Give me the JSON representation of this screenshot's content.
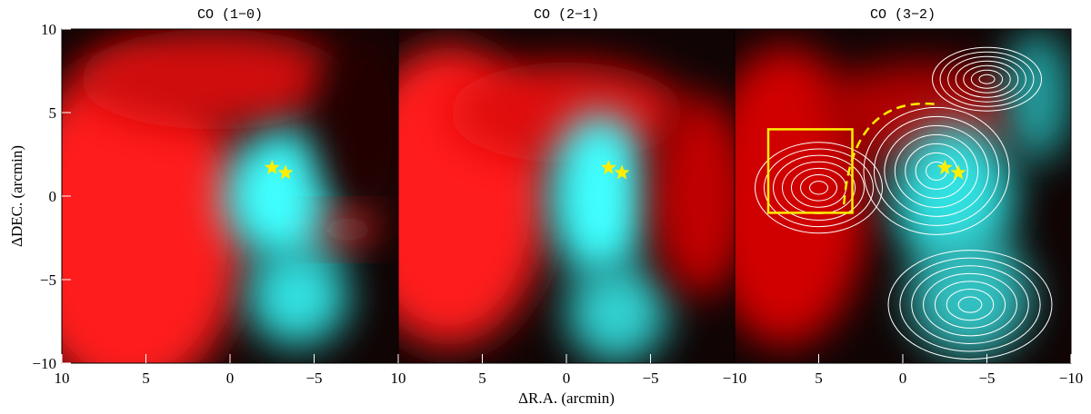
{
  "chart_data": [
    {
      "type": "image",
      "title": "CO (1−0)",
      "ylabel": "ΔDEC. (arcmin)",
      "xlim": [
        10,
        -10
      ],
      "ylim": [
        -10,
        10
      ],
      "xticks": [
        10,
        5,
        0,
        {
          "value": -5,
          "label": "−5"
        }
      ],
      "yticks": [
        10,
        5,
        0,
        {
          "value": -5,
          "label": "−5"
        },
        {
          "value": -10,
          "label": "−10"
        }
      ],
      "stars": {
        "x": [
          -2.5,
          -3.3
        ],
        "y": [
          1.7,
          1.4
        ],
        "color": "#ffee00"
      }
    },
    {
      "type": "image",
      "title": "CO (2−1)",
      "xlabel": "ΔR.A. (arcmin)",
      "xlim": [
        10,
        -10
      ],
      "ylim": [
        -10,
        10
      ],
      "xticks": [
        10,
        5,
        0,
        {
          "value": -5,
          "label": "−5"
        },
        {
          "value": -10,
          "label": "−10"
        }
      ],
      "stars": {
        "x": [
          -2.5,
          -3.3
        ],
        "y": [
          1.7,
          1.4
        ],
        "color": "#ffee00"
      }
    },
    {
      "type": "image",
      "title": "CO (3−2)",
      "xlim": [
        10,
        -10
      ],
      "ylim": [
        -10,
        10
      ],
      "xticks": [
        5,
        0,
        {
          "value": -5,
          "label": "−5"
        },
        {
          "value": -10,
          "label": "−10"
        }
      ],
      "stars": {
        "x": [
          -2.5,
          -3.3
        ],
        "y": [
          1.7,
          1.4
        ],
        "color": "#ffee00"
      },
      "box": {
        "x": [
          8,
          3
        ],
        "y": [
          -1,
          4
        ],
        "color": "#ffee00"
      },
      "contours": true
    }
  ]
}
